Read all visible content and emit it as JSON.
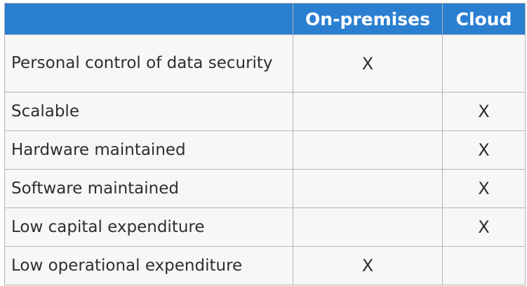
{
  "table": {
    "headers": {
      "feature": "",
      "on_premises": "On-premises",
      "cloud": "Cloud"
    },
    "rows": [
      {
        "feature": "Personal control of data security",
        "on_premises": "X",
        "cloud": ""
      },
      {
        "feature": "Scalable",
        "on_premises": "",
        "cloud": "X"
      },
      {
        "feature": "Hardware maintained",
        "on_premises": "",
        "cloud": "X"
      },
      {
        "feature": "Software maintained",
        "on_premises": "",
        "cloud": "X"
      },
      {
        "feature": "Low capital expenditure",
        "on_premises": "",
        "cloud": "X"
      },
      {
        "feature": "Low operational expenditure",
        "on_premises": "X",
        "cloud": ""
      }
    ]
  },
  "colors": {
    "header_background": "#2a7fd1",
    "header_text": "#ffffff",
    "cell_background": "#f7f7f7",
    "border": "#b5b5b5"
  }
}
